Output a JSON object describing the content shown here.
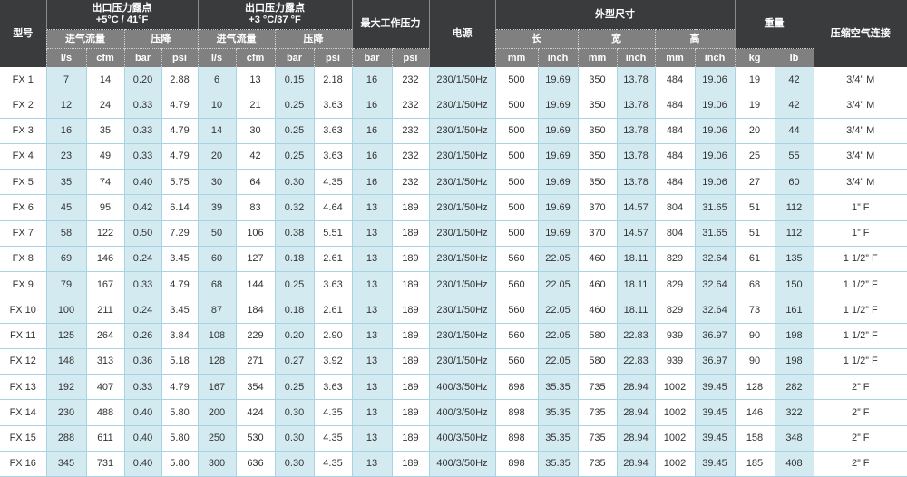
{
  "header": {
    "model": "型号",
    "dew5": {
      "title": "出口压力露点",
      "sub": "+5°C / 41°F"
    },
    "dew3": {
      "title": "出口压力露点",
      "sub": "+3 °C/37 °F"
    },
    "inlet_flow": "进气流量",
    "pressure_drop": "压降",
    "max_pressure": "最大工作压力",
    "power": "电源",
    "dimensions": "外型尺寸",
    "length": "长",
    "width": "宽",
    "height": "高",
    "weight": "重量",
    "connection": "压缩空气连接",
    "units": {
      "ls": "l/s",
      "cfm": "cfm",
      "bar": "bar",
      "psi": "psi",
      "mm": "mm",
      "inch": "inch",
      "kg": "kg",
      "lb": "lb"
    }
  },
  "rows": [
    [
      "FX 1",
      "7",
      "14",
      "0.20",
      "2.88",
      "6",
      "13",
      "0.15",
      "2.18",
      "16",
      "232",
      "230/1/50Hz",
      "500",
      "19.69",
      "350",
      "13.78",
      "484",
      "19.06",
      "19",
      "42",
      "3/4” M"
    ],
    [
      "FX 2",
      "12",
      "24",
      "0.33",
      "4.79",
      "10",
      "21",
      "0.25",
      "3.63",
      "16",
      "232",
      "230/1/50Hz",
      "500",
      "19.69",
      "350",
      "13.78",
      "484",
      "19.06",
      "19",
      "42",
      "3/4” M"
    ],
    [
      "FX 3",
      "16",
      "35",
      "0.33",
      "4.79",
      "14",
      "30",
      "0.25",
      "3.63",
      "16",
      "232",
      "230/1/50Hz",
      "500",
      "19.69",
      "350",
      "13.78",
      "484",
      "19.06",
      "20",
      "44",
      "3/4” M"
    ],
    [
      "FX 4",
      "23",
      "49",
      "0.33",
      "4.79",
      "20",
      "42",
      "0.25",
      "3.63",
      "16",
      "232",
      "230/1/50Hz",
      "500",
      "19.69",
      "350",
      "13.78",
      "484",
      "19.06",
      "25",
      "55",
      "3/4” M"
    ],
    [
      "FX 5",
      "35",
      "74",
      "0.40",
      "5.75",
      "30",
      "64",
      "0.30",
      "4.35",
      "16",
      "232",
      "230/1/50Hz",
      "500",
      "19.69",
      "350",
      "13.78",
      "484",
      "19.06",
      "27",
      "60",
      "3/4” M"
    ],
    [
      "FX 6",
      "45",
      "95",
      "0.42",
      "6.14",
      "39",
      "83",
      "0.32",
      "4.64",
      "13",
      "189",
      "230/1/50Hz",
      "500",
      "19.69",
      "370",
      "14.57",
      "804",
      "31.65",
      "51",
      "112",
      "1” F"
    ],
    [
      "FX 7",
      "58",
      "122",
      "0.50",
      "7.29",
      "50",
      "106",
      "0.38",
      "5.51",
      "13",
      "189",
      "230/1/50Hz",
      "500",
      "19.69",
      "370",
      "14.57",
      "804",
      "31.65",
      "51",
      "112",
      "1” F"
    ],
    [
      "FX 8",
      "69",
      "146",
      "0.24",
      "3.45",
      "60",
      "127",
      "0.18",
      "2.61",
      "13",
      "189",
      "230/1/50Hz",
      "560",
      "22.05",
      "460",
      "18.11",
      "829",
      "32.64",
      "61",
      "135",
      "1 1/2” F"
    ],
    [
      "FX 9",
      "79",
      "167",
      "0.33",
      "4.79",
      "68",
      "144",
      "0.25",
      "3.63",
      "13",
      "189",
      "230/1/50Hz",
      "560",
      "22.05",
      "460",
      "18.11",
      "829",
      "32.64",
      "68",
      "150",
      "1 1/2” F"
    ],
    [
      "FX 10",
      "100",
      "211",
      "0.24",
      "3.45",
      "87",
      "184",
      "0.18",
      "2.61",
      "13",
      "189",
      "230/1/50Hz",
      "560",
      "22.05",
      "460",
      "18.11",
      "829",
      "32.64",
      "73",
      "161",
      "1 1/2” F"
    ],
    [
      "FX 11",
      "125",
      "264",
      "0.26",
      "3.84",
      "108",
      "229",
      "0.20",
      "2.90",
      "13",
      "189",
      "230/1/50Hz",
      "560",
      "22.05",
      "580",
      "22.83",
      "939",
      "36.97",
      "90",
      "198",
      "1 1/2” F"
    ],
    [
      "FX 12",
      "148",
      "313",
      "0.36",
      "5.18",
      "128",
      "271",
      "0.27",
      "3.92",
      "13",
      "189",
      "230/1/50Hz",
      "560",
      "22.05",
      "580",
      "22.83",
      "939",
      "36.97",
      "90",
      "198",
      "1 1/2” F"
    ],
    [
      "FX 13",
      "192",
      "407",
      "0.33",
      "4.79",
      "167",
      "354",
      "0.25",
      "3.63",
      "13",
      "189",
      "400/3/50Hz",
      "898",
      "35.35",
      "735",
      "28.94",
      "1002",
      "39.45",
      "128",
      "282",
      "2” F"
    ],
    [
      "FX 14",
      "230",
      "488",
      "0.40",
      "5.80",
      "200",
      "424",
      "0.30",
      "4.35",
      "13",
      "189",
      "400/3/50Hz",
      "898",
      "35.35",
      "735",
      "28.94",
      "1002",
      "39.45",
      "146",
      "322",
      "2” F"
    ],
    [
      "FX 15",
      "288",
      "611",
      "0.40",
      "5.80",
      "250",
      "530",
      "0.30",
      "4.35",
      "13",
      "189",
      "400/3/50Hz",
      "898",
      "35.35",
      "735",
      "28.94",
      "1002",
      "39.45",
      "158",
      "348",
      "2” F"
    ],
    [
      "FX 16",
      "345",
      "731",
      "0.40",
      "5.80",
      "300",
      "636",
      "0.30",
      "4.35",
      "13",
      "189",
      "400/3/50Hz",
      "898",
      "35.35",
      "735",
      "28.94",
      "1002",
      "39.45",
      "185",
      "408",
      "2” F"
    ]
  ],
  "colors": {
    "header_dark": "#3a3b3d",
    "header_gray": "#808080",
    "shaded_column": "#d4eaf1",
    "grid_line": "#a8d3e2"
  }
}
